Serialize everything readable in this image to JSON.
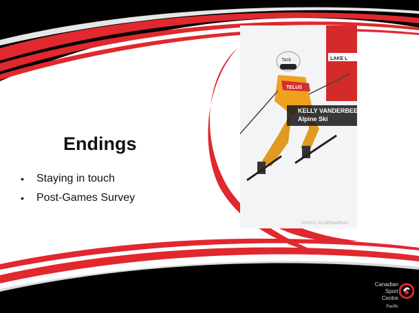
{
  "slide": {
    "title": "Endings",
    "bullets": [
      "Staying in touch",
      "Post-Games Survey"
    ],
    "photo": {
      "athlete_name": "KELLY VANDERBEEK",
      "sport": "Alpine Ski",
      "credit": "PHOTO: ACAPhotoPhoto",
      "helmet_text": "Tack",
      "suit_text": "TELUS",
      "banner_text": "LAKE L"
    },
    "logo": {
      "line1": "Canadian",
      "line2": "Sport",
      "line3": "Centre",
      "line4": "Pacific"
    },
    "colors": {
      "accent_red": "#e0282e",
      "dark": "#000000"
    }
  }
}
